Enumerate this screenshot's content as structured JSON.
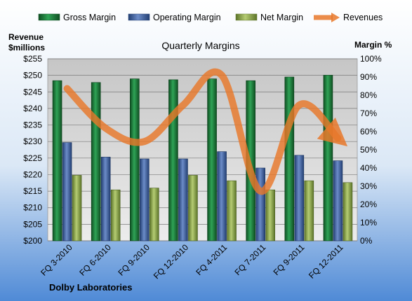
{
  "chart_data": {
    "type": "bar",
    "title": "Quarterly Margins",
    "company": "Dolby Laboratories",
    "categories": [
      "FQ 3-2010",
      "FQ 6-2010",
      "FQ 9-2010",
      "FQ 12-2010",
      "FQ 4-2011",
      "FQ 7-2011",
      "FQ 9-2011",
      "FQ 12-2011"
    ],
    "left_axis": {
      "label_line1": "Revenue",
      "label_line2": "$millions",
      "range": [
        200,
        255
      ],
      "step": 5,
      "tick_labels": [
        "$200",
        "$205",
        "$210",
        "$215",
        "$220",
        "$225",
        "$230",
        "$235",
        "$240",
        "$245",
        "$250",
        "$255"
      ]
    },
    "right_axis": {
      "label": "Margin %",
      "range": [
        0,
        100
      ],
      "step": 10,
      "tick_labels": [
        "0%",
        "10%",
        "20%",
        "30%",
        "40%",
        "50%",
        "60%",
        "70%",
        "80%",
        "90%",
        "100%"
      ]
    },
    "series": [
      {
        "name": "Gross Margin",
        "kind": "bar",
        "axis": "right",
        "color": "#1f7a3a",
        "values": [
          88,
          87,
          89,
          88.5,
          89,
          88,
          90,
          91
        ]
      },
      {
        "name": "Operating Margin",
        "kind": "bar",
        "axis": "right",
        "color": "#3f5f9c",
        "values": [
          54,
          46,
          45,
          45,
          49,
          40,
          47,
          44
        ]
      },
      {
        "name": "Net Margin",
        "kind": "bar",
        "axis": "right",
        "color": "#8da54a",
        "values": [
          36,
          28,
          29,
          36,
          33,
          28,
          33,
          32
        ]
      },
      {
        "name": "Revenues",
        "kind": "line",
        "axis": "left",
        "color": "#e8782a",
        "values": [
          246,
          234,
          230,
          241,
          250,
          215,
          241,
          231
        ]
      }
    ],
    "grid": true,
    "legend_position": "top"
  }
}
